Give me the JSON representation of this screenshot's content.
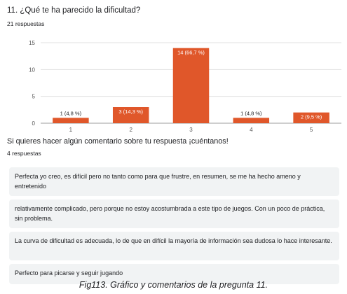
{
  "question1": {
    "title": "11. ¿Qué te ha parecido la dificultad?",
    "responses_count": "21 respuestas"
  },
  "chart_data": {
    "type": "bar",
    "categories": [
      "1",
      "2",
      "3",
      "4",
      "5"
    ],
    "values": [
      1,
      3,
      14,
      1,
      2
    ],
    "data_labels": [
      "1 (4,8 %)",
      "3 (14,3 %)",
      "14 (66,7 %)",
      "1 (4,8 %)",
      "2 (9,5 %)"
    ],
    "ylim": [
      0,
      15
    ],
    "yticks": [
      0,
      5,
      10,
      15
    ],
    "grid": true,
    "bar_color": "#e0572a"
  },
  "question2": {
    "title": "Si quieres hacer algún comentario sobre tu respuesta ¡cuéntanos!",
    "responses_count": "4 respuestas",
    "responses": [
      "Perfecta yo creo, es difícil pero no tanto como para que frustre, en resumen, se me ha hecho ameno y entretenido",
      "relativamente complicado, pero porque no estoy acostumbrada a este tipo de juegos. Con un poco de práctica, sin problema.",
      "La curva de dificultad es adecuada, lo de que en difícil la mayoría de información sea dudosa lo hace interesante.",
      "Perfecto para picarse y seguir jugando"
    ]
  },
  "caption": "Fig113. Gráfico y comentarios de la pregunta 11."
}
